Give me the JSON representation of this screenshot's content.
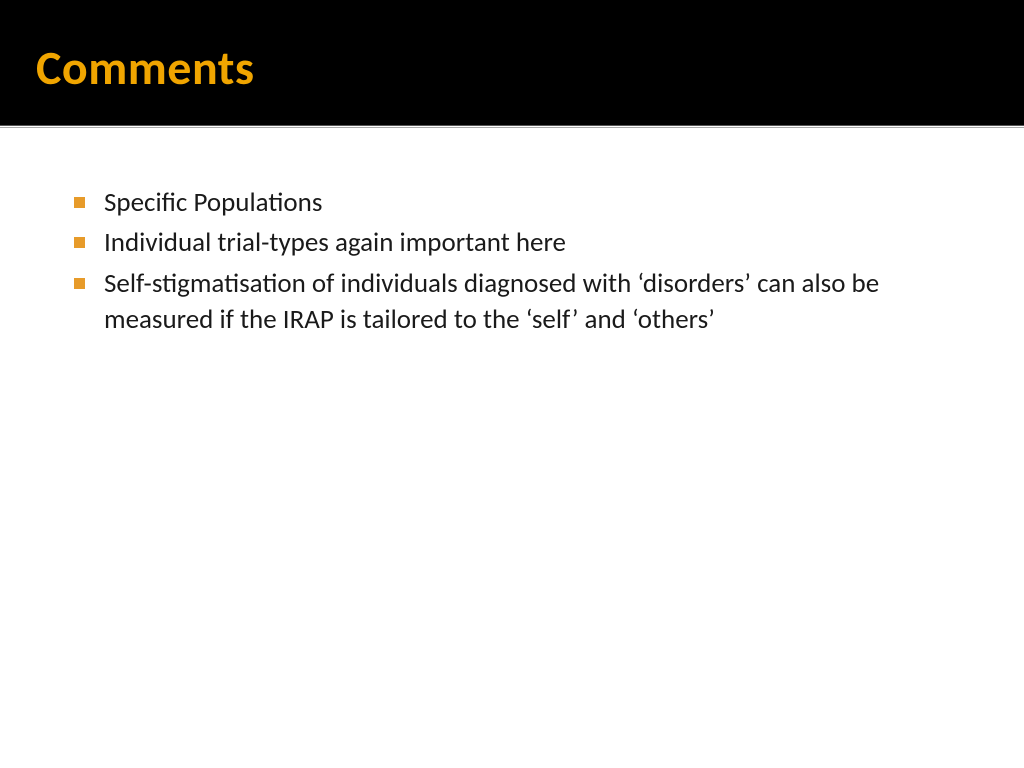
{
  "title": "Comments",
  "title_color": "#f0a500",
  "title_bg": "#000000",
  "bullet_color": "#e79b2a",
  "body_text_color": "#1a1a1a",
  "bullets": [
    "Specific Populations",
    "Individual trial-types again important here",
    "Self-stigmatisation of individuals diagnosed with ‘disorders’ can also be measured if the IRAP is tailored to the ‘self’ and ‘others’"
  ]
}
